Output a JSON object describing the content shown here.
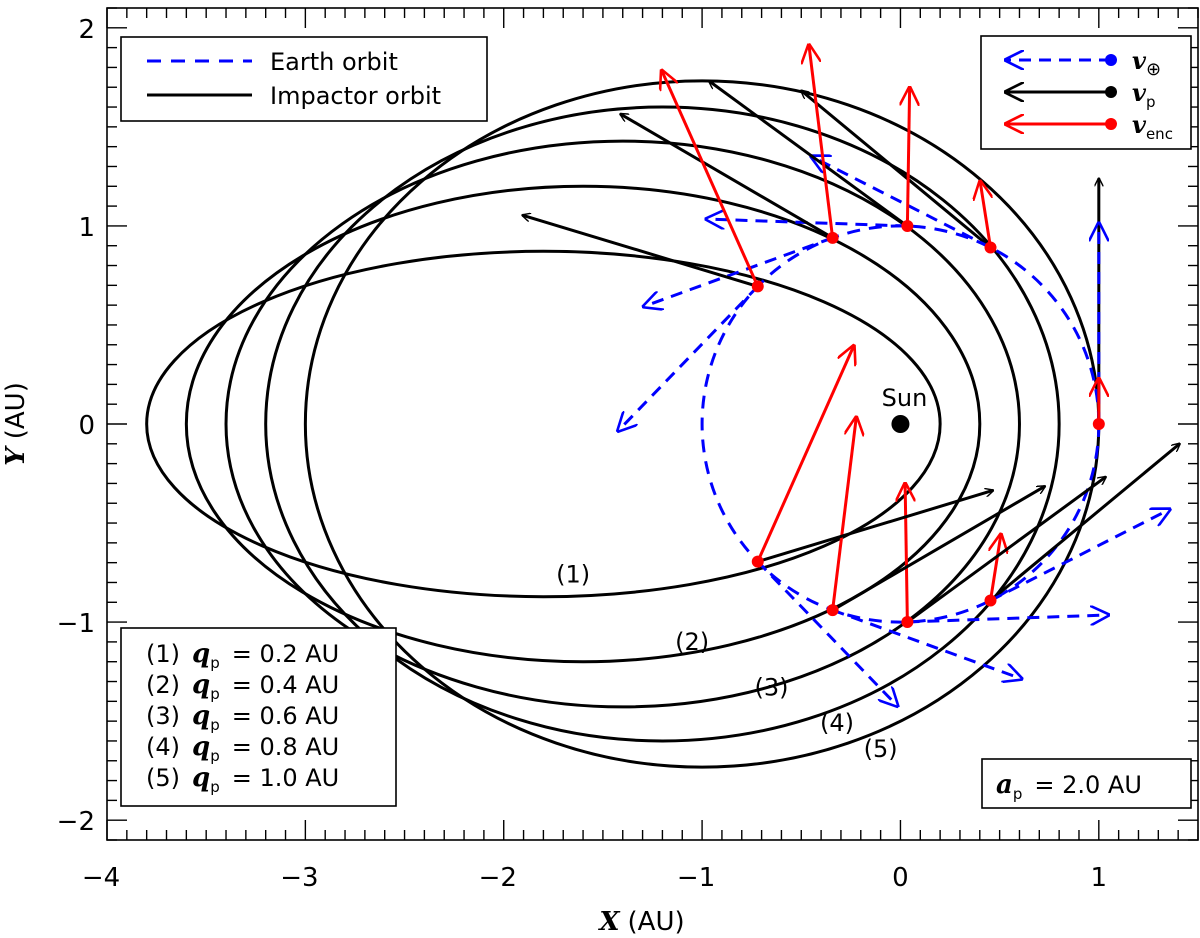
{
  "chart_data": {
    "type": "orbit_diagram",
    "xlabel": {
      "var": "X",
      "unit": "(AU)"
    },
    "ylabel": {
      "var": "Y",
      "unit": "(AU)"
    },
    "xlim": [
      -4,
      1.5
    ],
    "ylim": [
      -2.1,
      2.1
    ],
    "xticks": [
      -4,
      -3,
      -2,
      -1,
      0,
      1
    ],
    "yticks": [
      -2,
      -1,
      0,
      1,
      2
    ],
    "xtick_labels": [
      "−4",
      "−3",
      "−2",
      "−1",
      "0",
      "1"
    ],
    "ytick_labels": [
      "−2",
      "−1",
      "0",
      "1",
      "2"
    ],
    "semi_major_axis": 2.0,
    "sun": {
      "label": "Sun",
      "x": 0,
      "y": 0
    },
    "earth_orbit_radius": 1.0,
    "impactor_orbits": [
      {
        "id": 1,
        "q": 0.2,
        "label": "(1)",
        "label_pos": [
          -1.65,
          -0.8
        ]
      },
      {
        "id": 2,
        "q": 0.4,
        "label": "(2)",
        "label_pos": [
          -1.05,
          -1.14
        ]
      },
      {
        "id": 3,
        "q": 0.6,
        "label": "(3)",
        "label_pos": [
          -0.65,
          -1.37
        ]
      },
      {
        "id": 4,
        "q": 0.8,
        "label": "(4)",
        "label_pos": [
          -0.32,
          -1.55
        ]
      },
      {
        "id": 5,
        "q": 1.0,
        "label": "(5)",
        "label_pos": [
          -0.1,
          -1.68
        ]
      }
    ],
    "encounter_angles_deg": [
      0,
      63,
      88,
      110,
      136
    ],
    "legend_lines": [
      {
        "label": "Earth orbit",
        "style": "dashed",
        "color": "#0000ff"
      },
      {
        "label": "Impactor orbit",
        "style": "solid",
        "color": "#000000"
      }
    ],
    "legend_vectors": [
      {
        "symbol": "v",
        "sub": "⊕",
        "color": "#0000ff",
        "style": "dashed"
      },
      {
        "symbol": "v",
        "sub": "p",
        "color": "#000000",
        "style": "solid"
      },
      {
        "symbol": "v",
        "sub": "enc",
        "color": "#ff0000",
        "style": "solid"
      }
    ],
    "q_table": [
      {
        "label": "(1)",
        "sym": "q",
        "sub": "p",
        "value": "= 0.2 AU"
      },
      {
        "label": "(2)",
        "sym": "q",
        "sub": "p",
        "value": "= 0.4 AU"
      },
      {
        "label": "(3)",
        "sym": "q",
        "sub": "p",
        "value": "= 0.6 AU"
      },
      {
        "label": "(4)",
        "sym": "q",
        "sub": "p",
        "value": "= 0.8 AU"
      },
      {
        "label": "(5)",
        "sym": "q",
        "sub": "p",
        "value": "= 1.0 AU"
      }
    ],
    "a_box": {
      "sym": "a",
      "sub": "p",
      "value": "= 2.0 AU"
    },
    "colors": {
      "earth": "#0000ff",
      "impactor": "#000000",
      "encounter": "#ff0000"
    }
  }
}
